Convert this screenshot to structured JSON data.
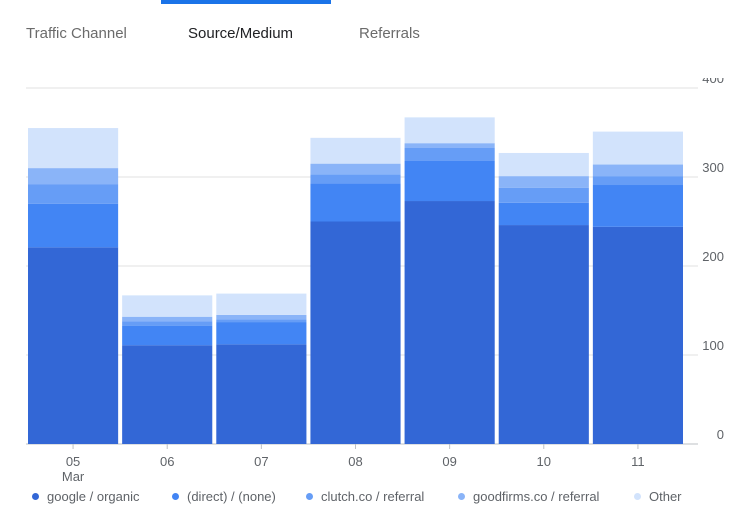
{
  "tabs": [
    {
      "label": "Traffic Channel",
      "active": false
    },
    {
      "label": "Source/Medium",
      "active": true
    },
    {
      "label": "Referrals",
      "active": false
    }
  ],
  "chart_data": {
    "type": "bar",
    "stacked": true,
    "categories": [
      "05",
      "06",
      "07",
      "08",
      "09",
      "10",
      "11"
    ],
    "x_sublabels": [
      "Mar",
      "",
      "",
      "",
      "",
      "",
      ""
    ],
    "series": [
      {
        "name": "google / organic",
        "color": "#3367d6",
        "values": [
          221,
          111,
          112,
          250,
          273,
          246,
          244
        ]
      },
      {
        "name": "(direct) / (none)",
        "color": "#4285f4",
        "values": [
          49,
          22,
          25,
          43,
          45,
          25,
          47
        ]
      },
      {
        "name": "clutch.co / referral",
        "color": "#669df6",
        "values": [
          22,
          5,
          3,
          10,
          15,
          17,
          10
        ]
      },
      {
        "name": "goodfirms.co / referral",
        "color": "#8ab4f8",
        "values": [
          18,
          5,
          5,
          12,
          5,
          13,
          13
        ]
      },
      {
        "name": "Other",
        "color": "#d2e3fc",
        "values": [
          45,
          24,
          24,
          29,
          29,
          26,
          37
        ]
      }
    ],
    "y_ticks": [
      0,
      100,
      200,
      300,
      400
    ],
    "ylim": [
      0,
      400
    ],
    "y_axis_position": "right",
    "grid": true,
    "legend_position": "bottom"
  }
}
